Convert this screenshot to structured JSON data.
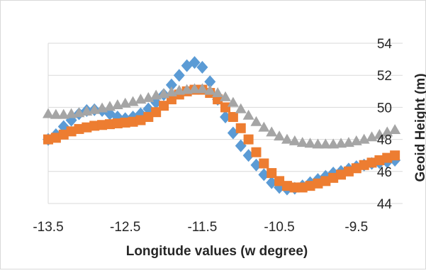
{
  "chart_data": {
    "type": "scatter",
    "title": "",
    "xlabel": "Longitude values (w degree)",
    "ylabel": "Geoid Height (m)",
    "xlim": [
      -13.5,
      -8.9
    ],
    "ylim": [
      44,
      54
    ],
    "x_ticks": [
      "-13.5",
      "-12.5",
      "-11.5",
      "-10.5",
      "-9.5"
    ],
    "y_ticks": [
      "44",
      "46",
      "48",
      "50",
      "52",
      "54"
    ],
    "y_axis_position": "right",
    "grid": "horizontal",
    "legend": "none",
    "series": [
      {
        "marker": "diamond",
        "color": "#5B9BD5",
        "x": [
          -13.5,
          -13.4,
          -13.3,
          -13.2,
          -13.1,
          -13.0,
          -12.9,
          -12.8,
          -12.7,
          -12.6,
          -12.5,
          -12.4,
          -12.3,
          -12.2,
          -12.1,
          -12.0,
          -11.9,
          -11.8,
          -11.7,
          -11.6,
          -11.5,
          -11.4,
          -11.3,
          -11.2,
          -11.1,
          -11.0,
          -10.9,
          -10.8,
          -10.7,
          -10.6,
          -10.5,
          -10.4,
          -10.3,
          -10.2,
          -10.1,
          -10.0,
          -9.9,
          -9.8,
          -9.7,
          -9.6,
          -9.5,
          -9.4,
          -9.3,
          -9.2,
          -9.1,
          -9.0
        ],
        "values": [
          48.0,
          48.3,
          48.8,
          49.2,
          49.6,
          49.8,
          49.85,
          49.8,
          49.6,
          49.4,
          49.3,
          49.4,
          49.6,
          49.9,
          50.3,
          50.8,
          51.4,
          52.0,
          52.6,
          52.8,
          52.5,
          51.6,
          50.5,
          49.4,
          48.4,
          47.6,
          47.0,
          46.4,
          45.8,
          45.3,
          45.0,
          44.9,
          44.95,
          45.1,
          45.3,
          45.5,
          45.7,
          45.9,
          46.0,
          46.15,
          46.3,
          46.4,
          46.5,
          46.55,
          46.6,
          46.7
        ]
      },
      {
        "marker": "square",
        "color": "#ED7D31",
        "x": [
          -13.5,
          -13.4,
          -13.3,
          -13.2,
          -13.1,
          -13.0,
          -12.9,
          -12.8,
          -12.7,
          -12.6,
          -12.5,
          -12.4,
          -12.3,
          -12.2,
          -12.1,
          -12.0,
          -11.9,
          -11.8,
          -11.7,
          -11.6,
          -11.5,
          -11.4,
          -11.3,
          -11.2,
          -11.1,
          -11.0,
          -10.9,
          -10.8,
          -10.7,
          -10.6,
          -10.5,
          -10.4,
          -10.3,
          -10.2,
          -10.1,
          -10.0,
          -9.9,
          -9.8,
          -9.7,
          -9.6,
          -9.5,
          -9.4,
          -9.3,
          -9.2,
          -9.1,
          -9.0
        ],
        "values": [
          48.0,
          48.1,
          48.3,
          48.5,
          48.65,
          48.75,
          48.85,
          48.9,
          48.95,
          49.0,
          49.05,
          49.1,
          49.2,
          49.4,
          49.7,
          50.1,
          50.5,
          50.8,
          51.0,
          51.1,
          51.1,
          50.9,
          50.5,
          50.0,
          49.4,
          48.7,
          48.0,
          47.2,
          46.5,
          45.9,
          45.4,
          45.1,
          45.0,
          45.0,
          45.1,
          45.25,
          45.4,
          45.6,
          45.8,
          46.0,
          46.2,
          46.4,
          46.55,
          46.7,
          46.85,
          47.0
        ]
      },
      {
        "marker": "triangle",
        "color": "#A5A5A5",
        "x": [
          -13.5,
          -13.4,
          -13.3,
          -13.2,
          -13.1,
          -13.0,
          -12.9,
          -12.8,
          -12.7,
          -12.6,
          -12.5,
          -12.4,
          -12.3,
          -12.2,
          -12.1,
          -12.0,
          -11.9,
          -11.8,
          -11.7,
          -11.6,
          -11.5,
          -11.4,
          -11.3,
          -11.2,
          -11.1,
          -11.0,
          -10.9,
          -10.8,
          -10.7,
          -10.6,
          -10.5,
          -10.4,
          -10.3,
          -10.2,
          -10.1,
          -10.0,
          -9.9,
          -9.8,
          -9.7,
          -9.6,
          -9.5,
          -9.4,
          -9.3,
          -9.2,
          -9.1,
          -9.0
        ],
        "values": [
          49.6,
          49.55,
          49.55,
          49.6,
          49.65,
          49.75,
          49.85,
          49.95,
          50.05,
          50.15,
          50.25,
          50.35,
          50.5,
          50.6,
          50.75,
          50.85,
          50.95,
          51.05,
          51.1,
          51.15,
          51.15,
          51.05,
          50.9,
          50.65,
          50.3,
          49.9,
          49.5,
          49.1,
          48.75,
          48.45,
          48.2,
          48.0,
          47.9,
          47.8,
          47.75,
          47.7,
          47.7,
          47.7,
          47.75,
          47.8,
          47.9,
          48.0,
          48.15,
          48.3,
          48.45,
          48.6
        ]
      }
    ]
  }
}
